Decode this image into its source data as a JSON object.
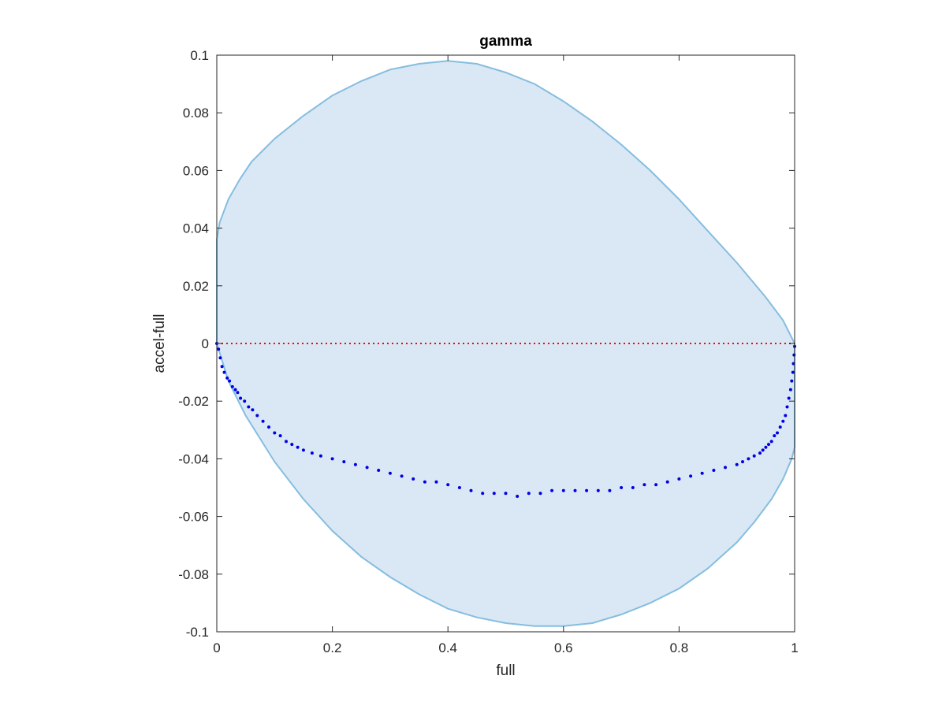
{
  "chart_data": {
    "type": "scatter",
    "title": "gamma",
    "xlabel": "full",
    "ylabel": "accel-full",
    "xlim": [
      0,
      1
    ],
    "ylim": [
      -0.1,
      0.1
    ],
    "xticks": [
      0,
      0.2,
      0.4,
      0.6,
      0.8,
      1
    ],
    "xtick_labels": [
      "0",
      "0.2",
      "0.4",
      "0.6",
      "0.8",
      "1"
    ],
    "yticks": [
      0.1,
      0.08,
      0.06,
      0.04,
      0.02,
      0,
      -0.02,
      -0.04,
      -0.06,
      -0.08,
      -0.1
    ],
    "ytick_labels": [
      "0.1",
      "0.08",
      "0.06",
      "0.04",
      "0.02",
      "0",
      "-0.02",
      "-0.04",
      "-0.06",
      "-0.08",
      "-0.1"
    ],
    "grid": false,
    "colors": {
      "region_fill": "#d9e8f4",
      "region_edge": "#85bde0",
      "points": "#0000e6",
      "zero_line": "#ff0000",
      "axes": "#262626"
    },
    "region": {
      "upper": [
        [
          0,
          0.036
        ],
        [
          0.005,
          0.042
        ],
        [
          0.02,
          0.05
        ],
        [
          0.04,
          0.057
        ],
        [
          0.06,
          0.063
        ],
        [
          0.1,
          0.071
        ],
        [
          0.15,
          0.079
        ],
        [
          0.2,
          0.086
        ],
        [
          0.25,
          0.091
        ],
        [
          0.3,
          0.095
        ],
        [
          0.35,
          0.097
        ],
        [
          0.4,
          0.098
        ],
        [
          0.45,
          0.097
        ],
        [
          0.5,
          0.094
        ],
        [
          0.55,
          0.09
        ],
        [
          0.6,
          0.084
        ],
        [
          0.65,
          0.077
        ],
        [
          0.7,
          0.069
        ],
        [
          0.75,
          0.06
        ],
        [
          0.8,
          0.05
        ],
        [
          0.85,
          0.039
        ],
        [
          0.9,
          0.028
        ],
        [
          0.95,
          0.016
        ],
        [
          0.98,
          0.008
        ],
        [
          1,
          0
        ]
      ],
      "lower": [
        [
          0,
          0
        ],
        [
          0.02,
          -0.013
        ],
        [
          0.05,
          -0.025
        ],
        [
          0.1,
          -0.041
        ],
        [
          0.15,
          -0.054
        ],
        [
          0.2,
          -0.065
        ],
        [
          0.25,
          -0.074
        ],
        [
          0.3,
          -0.081
        ],
        [
          0.35,
          -0.087
        ],
        [
          0.4,
          -0.092
        ],
        [
          0.45,
          -0.095
        ],
        [
          0.5,
          -0.097
        ],
        [
          0.55,
          -0.098
        ],
        [
          0.6,
          -0.098
        ],
        [
          0.65,
          -0.097
        ],
        [
          0.7,
          -0.094
        ],
        [
          0.75,
          -0.09
        ],
        [
          0.8,
          -0.085
        ],
        [
          0.85,
          -0.078
        ],
        [
          0.9,
          -0.069
        ],
        [
          0.93,
          -0.062
        ],
        [
          0.96,
          -0.054
        ],
        [
          0.98,
          -0.047
        ],
        [
          0.995,
          -0.04
        ],
        [
          1,
          -0.036
        ]
      ]
    },
    "reference_line": {
      "y": 0,
      "style": "dotted"
    },
    "series": [
      {
        "points": [
          [
            0,
            0
          ],
          [
            0.003,
            -0.002
          ],
          [
            0.006,
            -0.005
          ],
          [
            0.009,
            -0.008
          ],
          [
            0.013,
            -0.01
          ],
          [
            0.018,
            -0.012
          ],
          [
            0.022,
            -0.013
          ],
          [
            0.027,
            -0.015
          ],
          [
            0.032,
            -0.016
          ],
          [
            0.036,
            -0.017
          ],
          [
            0.041,
            -0.019
          ],
          [
            0.048,
            -0.02
          ],
          [
            0.055,
            -0.022
          ],
          [
            0.062,
            -0.023
          ],
          [
            0.07,
            -0.025
          ],
          [
            0.08,
            -0.027
          ],
          [
            0.09,
            -0.029
          ],
          [
            0.1,
            -0.031
          ],
          [
            0.11,
            -0.032
          ],
          [
            0.12,
            -0.034
          ],
          [
            0.13,
            -0.035
          ],
          [
            0.14,
            -0.036
          ],
          [
            0.15,
            -0.037
          ],
          [
            0.165,
            -0.038
          ],
          [
            0.18,
            -0.039
          ],
          [
            0.2,
            -0.04
          ],
          [
            0.22,
            -0.041
          ],
          [
            0.24,
            -0.042
          ],
          [
            0.26,
            -0.043
          ],
          [
            0.28,
            -0.044
          ],
          [
            0.3,
            -0.045
          ],
          [
            0.32,
            -0.046
          ],
          [
            0.34,
            -0.047
          ],
          [
            0.36,
            -0.048
          ],
          [
            0.38,
            -0.048
          ],
          [
            0.4,
            -0.049
          ],
          [
            0.42,
            -0.05
          ],
          [
            0.44,
            -0.051
          ],
          [
            0.46,
            -0.052
          ],
          [
            0.48,
            -0.052
          ],
          [
            0.5,
            -0.052
          ],
          [
            0.52,
            -0.053
          ],
          [
            0.54,
            -0.052
          ],
          [
            0.56,
            -0.052
          ],
          [
            0.58,
            -0.051
          ],
          [
            0.6,
            -0.051
          ],
          [
            0.62,
            -0.051
          ],
          [
            0.64,
            -0.051
          ],
          [
            0.66,
            -0.051
          ],
          [
            0.68,
            -0.051
          ],
          [
            0.7,
            -0.05
          ],
          [
            0.72,
            -0.05
          ],
          [
            0.74,
            -0.049
          ],
          [
            0.76,
            -0.049
          ],
          [
            0.78,
            -0.048
          ],
          [
            0.8,
            -0.047
          ],
          [
            0.82,
            -0.046
          ],
          [
            0.84,
            -0.045
          ],
          [
            0.86,
            -0.044
          ],
          [
            0.88,
            -0.043
          ],
          [
            0.9,
            -0.042
          ],
          [
            0.91,
            -0.041
          ],
          [
            0.92,
            -0.04
          ],
          [
            0.93,
            -0.039
          ],
          [
            0.94,
            -0.038
          ],
          [
            0.945,
            -0.037
          ],
          [
            0.95,
            -0.036
          ],
          [
            0.955,
            -0.035
          ],
          [
            0.96,
            -0.034
          ],
          [
            0.965,
            -0.032
          ],
          [
            0.97,
            -0.031
          ],
          [
            0.975,
            -0.029
          ],
          [
            0.98,
            -0.027
          ],
          [
            0.984,
            -0.025
          ],
          [
            0.987,
            -0.022
          ],
          [
            0.99,
            -0.019
          ],
          [
            0.993,
            -0.016
          ],
          [
            0.995,
            -0.013
          ],
          [
            0.997,
            -0.01
          ],
          [
            0.998,
            -0.007
          ],
          [
            0.999,
            -0.004
          ],
          [
            1,
            -0.001
          ]
        ]
      }
    ]
  }
}
